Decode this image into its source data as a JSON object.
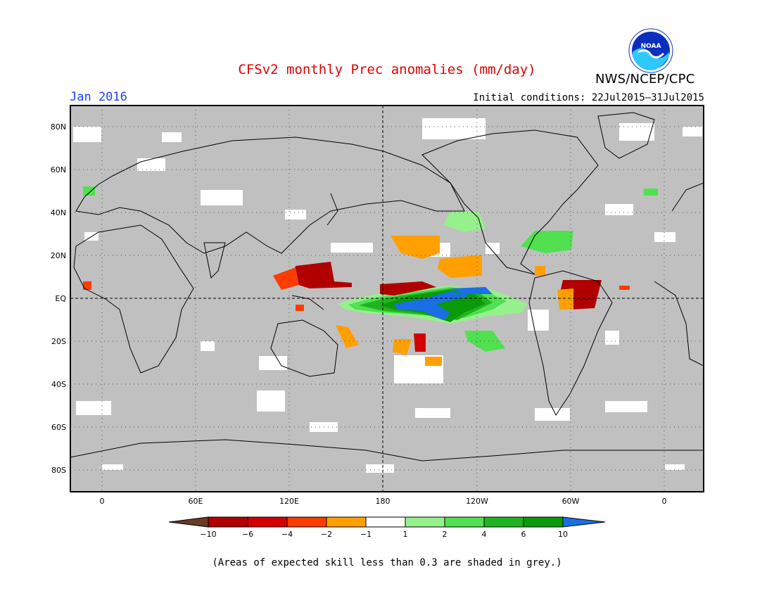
{
  "title": "CFSv2 monthly Prec anomalies (mm/day)",
  "target_month": "Jan 2016",
  "initial_conditions": "Initial conditions: 22Jul2015–31Jul2015",
  "agency": "NWS/NCEP/CPC",
  "logo_text": "NOAA",
  "footnote": "(Areas of expected skill less than 0.3 are shaded in grey.)",
  "map": {
    "lat_labels": [
      "80N",
      "60N",
      "40N",
      "20N",
      "EQ",
      "20S",
      "40S",
      "60S",
      "80S"
    ],
    "lon_labels": [
      "0",
      "60E",
      "120E",
      "180",
      "120W",
      "60W",
      "0"
    ],
    "colors": {
      "grey_mask": "#c0c0c0",
      "ocean_ok": "#ffffff"
    }
  },
  "colorbar": {
    "labels": [
      "−10",
      "−6",
      "−4",
      "−2",
      "−1",
      "1",
      "2",
      "4",
      "6",
      "10"
    ],
    "colors": [
      "#6b3a24",
      "#b00000",
      "#d40000",
      "#ff3c00",
      "#ff9f00",
      "#ffffff",
      "#96f08c",
      "#50e050",
      "#20b420",
      "#0a9a0a",
      "#1a6fe6"
    ]
  },
  "anomalies": [
    {
      "region": "tropical-pacific-positive",
      "category": "6",
      "color": "#0a9a0a"
    },
    {
      "region": "central-pacific-max",
      "category": "10",
      "color": "#1a6fe6"
    },
    {
      "region": "western-pacific-negative",
      "category": "-6",
      "color": "#b00000"
    },
    {
      "region": "northern-south-america-negative",
      "category": "-6",
      "color": "#b00000"
    }
  ]
}
